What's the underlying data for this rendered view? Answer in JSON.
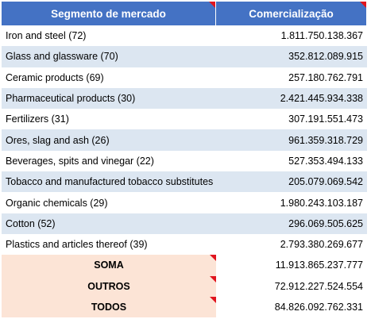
{
  "table": {
    "header": [
      "Segmento de mercado",
      "Comercialização"
    ],
    "rows": [
      [
        "Iron and steel (72)",
        "1.811.750.138.367"
      ],
      [
        "Glass and glassware (70)",
        "352.812.089.915"
      ],
      [
        "Ceramic products (69)",
        "257.180.762.791"
      ],
      [
        "Pharmaceutical products (30)",
        "2.421.445.934.338"
      ],
      [
        "Fertilizers (31)",
        "307.191.551.473"
      ],
      [
        "Ores, slag and ash (26)",
        "961.359.318.729"
      ],
      [
        "Beverages, spits and vinegar (22)",
        "527.353.494.133"
      ],
      [
        "Tobacco and manufactured tobacco substitutes",
        "205.079.069.542"
      ],
      [
        "Organic chemicals (29)",
        "1.980.243.103.187"
      ],
      [
        "Cotton (52)",
        "296.069.505.625"
      ],
      [
        "Plastics and articles thereof (39)",
        "2.793.380.269.677"
      ]
    ],
    "totals": [
      [
        "SOMA",
        "11.913.865.237.777"
      ],
      [
        "OUTROS",
        "72.912.227.524.554"
      ],
      [
        "TODOS",
        "84.826.092.762.331"
      ]
    ]
  }
}
